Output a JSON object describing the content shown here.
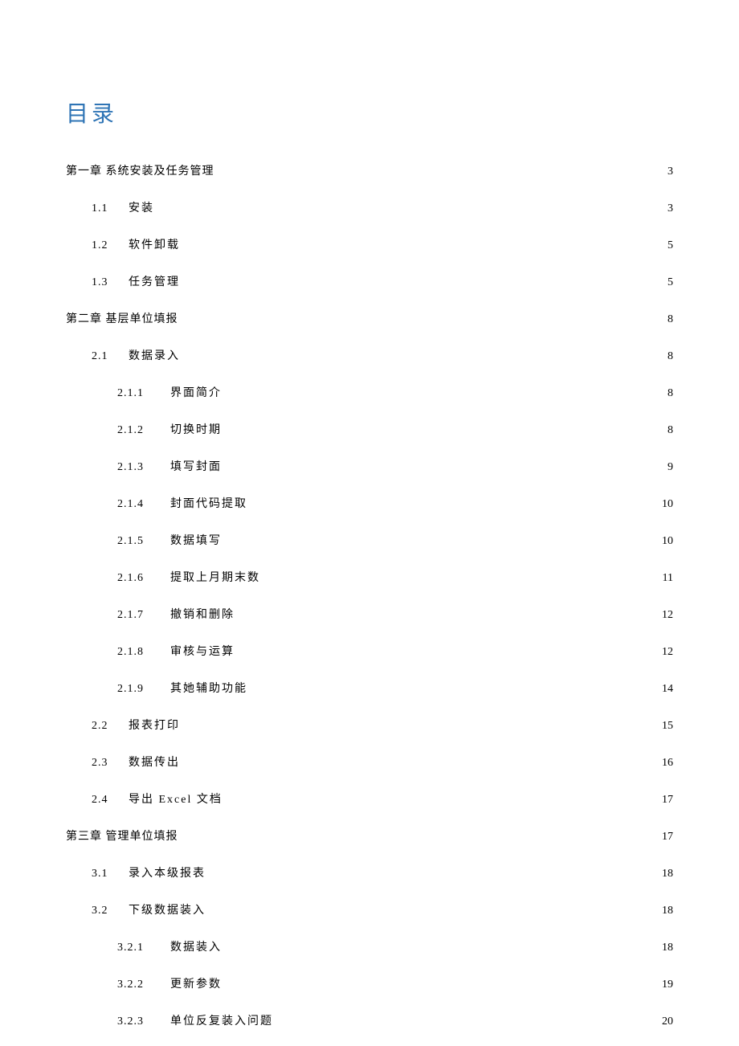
{
  "title": "目录",
  "colors": {
    "title": "#2e74b5",
    "text": "#000000",
    "background": "#ffffff"
  },
  "typography": {
    "title_fontsize": 28,
    "entry_fontsize": 14,
    "title_font": "SimHei",
    "body_font": "SimSun"
  },
  "entries": [
    {
      "level": 1,
      "num": "第一章",
      "label": "系统安装及任务管理",
      "page": "3"
    },
    {
      "level": 2,
      "num": "1.1",
      "label": "安装",
      "page": "3"
    },
    {
      "level": 2,
      "num": "1.2",
      "label": "软件卸载",
      "page": "5"
    },
    {
      "level": 2,
      "num": "1.3",
      "label": "任务管理",
      "page": "5"
    },
    {
      "level": 1,
      "num": "第二章",
      "label": "基层单位填报",
      "page": "8"
    },
    {
      "level": 2,
      "num": "2.1",
      "label": "数据录入",
      "page": "8"
    },
    {
      "level": 3,
      "num": "2.1.1",
      "label": "界面简介",
      "page": "8"
    },
    {
      "level": 3,
      "num": "2.1.2",
      "label": "切换时期",
      "page": "8"
    },
    {
      "level": 3,
      "num": "2.1.3",
      "label": "填写封面",
      "page": "9"
    },
    {
      "level": 3,
      "num": "2.1.4",
      "label": "封面代码提取",
      "page": "10"
    },
    {
      "level": 3,
      "num": "2.1.5",
      "label": "数据填写",
      "page": "10"
    },
    {
      "level": 3,
      "num": "2.1.6",
      "label": "提取上月期末数",
      "page": "11"
    },
    {
      "level": 3,
      "num": "2.1.7",
      "label": "撤销和删除",
      "page": "12"
    },
    {
      "level": 3,
      "num": "2.1.8",
      "label": "审核与运算",
      "page": "12"
    },
    {
      "level": 3,
      "num": "2.1.9",
      "label": "其她辅助功能",
      "page": "14"
    },
    {
      "level": 2,
      "num": "2.2",
      "label": "报表打印",
      "page": "15"
    },
    {
      "level": 2,
      "num": "2.3",
      "label": "数据传出",
      "page": "16"
    },
    {
      "level": 2,
      "num": "2.4",
      "label": "导出 Excel 文档",
      "page": "17"
    },
    {
      "level": 1,
      "num": "第三章",
      "label": "管理单位填报",
      "page": "17"
    },
    {
      "level": 2,
      "num": "3.1",
      "label": "录入本级报表",
      "page": "18"
    },
    {
      "level": 2,
      "num": "3.2",
      "label": "下级数据装入",
      "page": "18"
    },
    {
      "level": 3,
      "num": "3.2.1",
      "label": "数据装入",
      "page": "18"
    },
    {
      "level": 3,
      "num": "3.2.2",
      "label": "更新参数",
      "page": "19"
    },
    {
      "level": 3,
      "num": "3.2.3",
      "label": "单位反复装入问题",
      "page": "20"
    }
  ]
}
